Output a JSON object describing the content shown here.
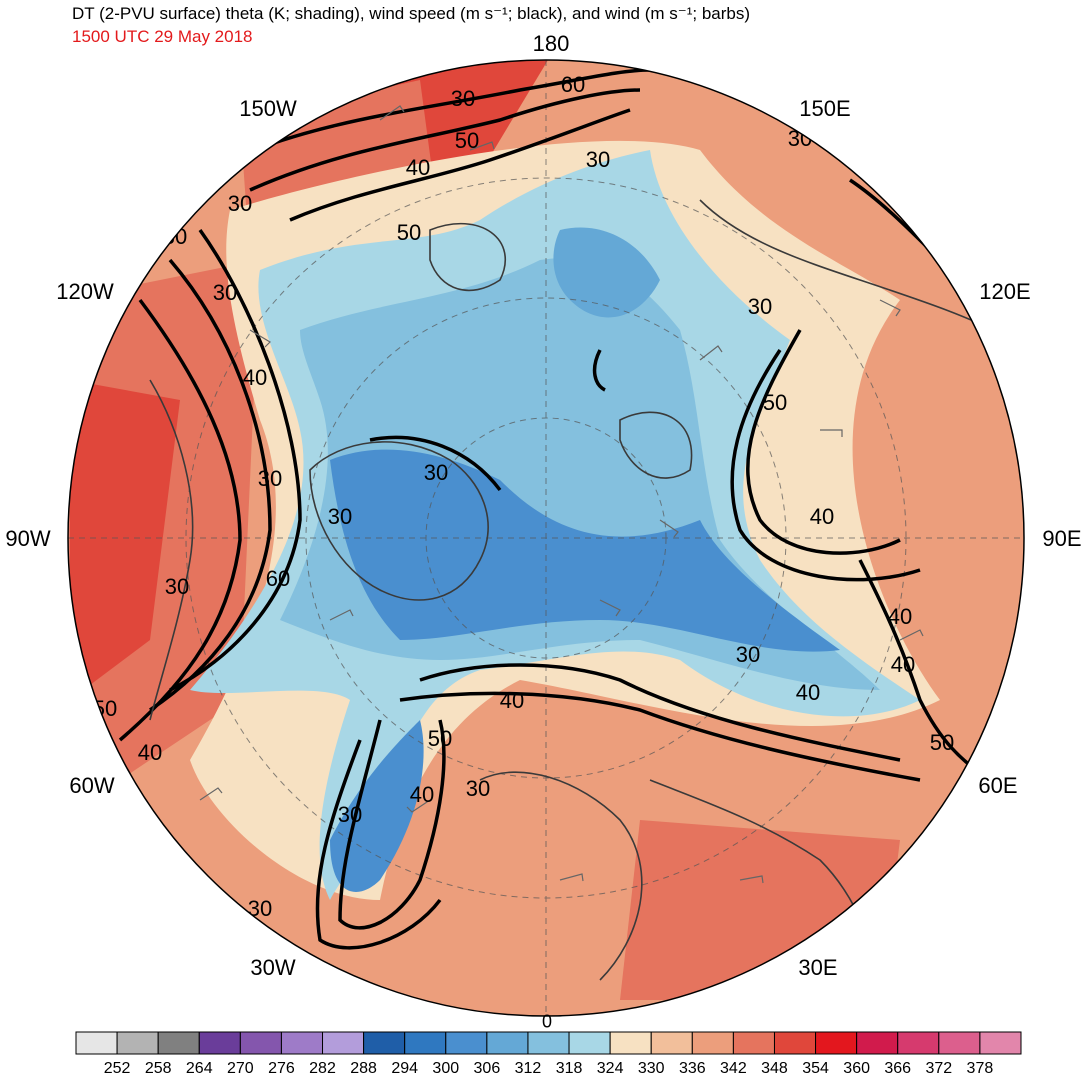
{
  "title": "DT (2-PVU surface) theta (K; shading), wind speed (m s⁻¹; black), and wind (m s⁻¹; barbs)",
  "valid_time": "1500 UTC 29 May 2018",
  "longitude_labels": {
    "lon_180": "180",
    "lon_150e": "150E",
    "lon_120e": "120E",
    "lon_90e": "90E",
    "lon_60e": "60E",
    "lon_30e": "30E",
    "lon_0": "0",
    "lon_30w": "30W",
    "lon_60w": "60W",
    "lon_90w": "90W",
    "lon_120w": "120W",
    "lon_150w": "150W"
  },
  "colorbar": {
    "colors": [
      "#e6e6e6",
      "#b3b3b3",
      "#808080",
      "#6a3d9a",
      "#8456ad",
      "#9e7bc8",
      "#b39ddb",
      "#1f5ea8",
      "#2f78c0",
      "#4a8fcf",
      "#64a8d6",
      "#84c0de",
      "#a8d7e6",
      "#f7e1c2",
      "#f2bf9b",
      "#ec9e7c",
      "#e5745e",
      "#e0473b",
      "#e3171e",
      "#d11b4c",
      "#d63a6e",
      "#dc5f8d",
      "#e286ab"
    ],
    "labels": [
      "252",
      "258",
      "264",
      "270",
      "276",
      "282",
      "288",
      "294",
      "300",
      "306",
      "312",
      "318",
      "324",
      "330",
      "336",
      "342",
      "348",
      "354",
      "360",
      "366",
      "372",
      "378"
    ]
  },
  "contour_labels": [
    {
      "text": "60"
    },
    {
      "text": "30"
    },
    {
      "text": "50"
    },
    {
      "text": "40"
    },
    {
      "text": "50"
    },
    {
      "text": "30"
    },
    {
      "text": "30"
    },
    {
      "text": "30"
    },
    {
      "text": "30"
    },
    {
      "text": "40"
    },
    {
      "text": "50"
    },
    {
      "text": "30"
    },
    {
      "text": "60"
    },
    {
      "text": "30"
    },
    {
      "text": "40"
    },
    {
      "text": "30"
    },
    {
      "text": "30"
    },
    {
      "text": "30"
    },
    {
      "text": "50"
    },
    {
      "text": "30"
    },
    {
      "text": "40"
    },
    {
      "text": "40"
    },
    {
      "text": "40"
    },
    {
      "text": "30"
    },
    {
      "text": "40"
    },
    {
      "text": "50"
    },
    {
      "text": "40"
    },
    {
      "text": "50"
    },
    {
      "text": "40"
    },
    {
      "text": "30"
    },
    {
      "text": "30"
    },
    {
      "text": "30"
    }
  ]
}
